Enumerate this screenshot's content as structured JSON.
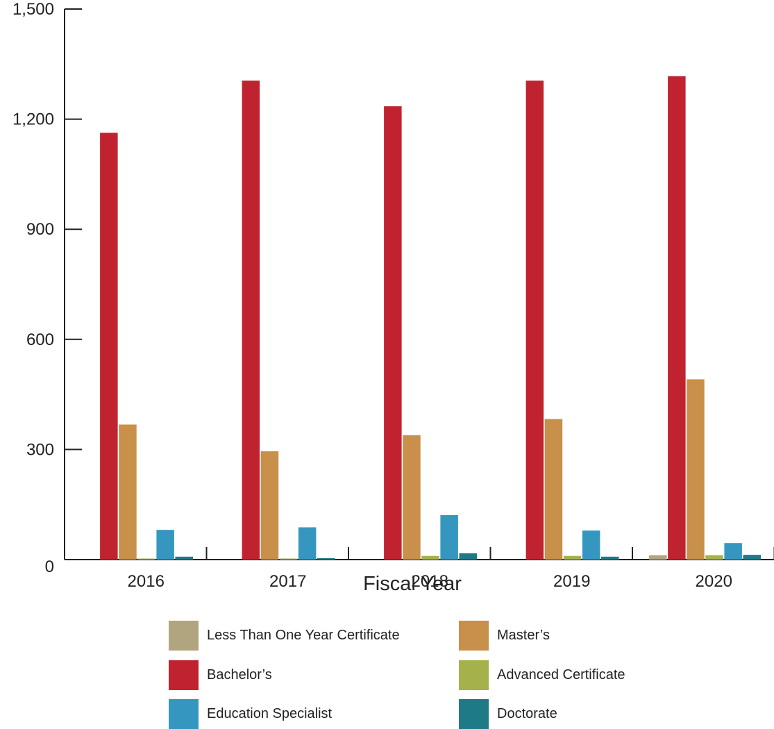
{
  "chart_data": {
    "type": "bar",
    "title": "",
    "xlabel": "Fiscal Year",
    "ylabel": "",
    "ylim": [
      0,
      1500
    ],
    "yticks": [
      "0",
      "300",
      "600",
      "900",
      "1,200",
      "1,500"
    ],
    "ytick_values": [
      0,
      300,
      600,
      900,
      1200,
      1500
    ],
    "categories": [
      "2016",
      "2017",
      "2018",
      "2019",
      "2020"
    ],
    "grid": false,
    "legend_position": "bottom",
    "series": [
      {
        "name": "Less Than One Year Certificate",
        "color": "#b1a57f",
        "values": [
          0,
          0,
          0,
          0,
          12
        ]
      },
      {
        "name": "Bachelor’s",
        "color": "#c0232f",
        "values": [
          1163,
          1305,
          1235,
          1305,
          1317
        ]
      },
      {
        "name": "Master’s",
        "color": "#c8904a",
        "values": [
          368,
          295,
          339,
          383,
          491
        ]
      },
      {
        "name": "Advanced Certificate",
        "color": "#a5b24c",
        "values": [
          2,
          2,
          10,
          10,
          12
        ]
      },
      {
        "name": "Education Specialist",
        "color": "#3597c0",
        "values": [
          81,
          88,
          121,
          79,
          45
        ]
      },
      {
        "name": "Doctorate",
        "color": "#1f7a87",
        "values": [
          8,
          4,
          17,
          8,
          13
        ]
      }
    ]
  },
  "legend": {
    "items": [
      {
        "label": "Less Than One Year Certificate",
        "color": "#b1a57f"
      },
      {
        "label": "Master’s",
        "color": "#c8904a"
      },
      {
        "label": "Bachelor’s",
        "color": "#c0232f"
      },
      {
        "label": "Advanced Certificate",
        "color": "#a5b24c"
      },
      {
        "label": "Education Specialist",
        "color": "#3597c0"
      },
      {
        "label": "Doctorate",
        "color": "#1f7a87"
      }
    ]
  }
}
